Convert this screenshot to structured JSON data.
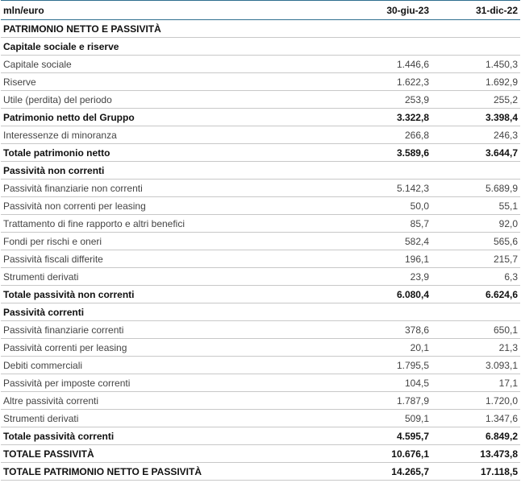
{
  "table": {
    "header": [
      "mln/euro",
      "30-giu-23",
      "31-dic-22"
    ],
    "rows": [
      [
        "PATRIMONIO NETTO E PASSIVITÀ"
      ],
      [
        "Capitale sociale e riserve"
      ],
      [
        "Capitale sociale",
        "1.446,6",
        "1.450,3"
      ],
      [
        "Riserve",
        "1.622,3",
        "1.692,9"
      ],
      [
        "Utile (perdita) del periodo",
        "253,9",
        "255,2"
      ],
      [
        "Patrimonio netto del Gruppo",
        "3.322,8",
        "3.398,4"
      ],
      [
        "Interessenze di minoranza",
        "266,8",
        "246,3"
      ],
      [
        "Totale patrimonio netto",
        "3.589,6",
        "3.644,7"
      ],
      [
        "Passività non correnti"
      ],
      [
        "Passività finanziarie non correnti",
        "5.142,3",
        "5.689,9"
      ],
      [
        "Passività non correnti per leasing",
        "50,0",
        "55,1"
      ],
      [
        "Trattamento di fine rapporto e altri benefici",
        "85,7",
        "92,0"
      ],
      [
        "Fondi per rischi e oneri",
        "582,4",
        "565,6"
      ],
      [
        "Passività fiscali differite",
        "196,1",
        "215,7"
      ],
      [
        "Strumenti derivati",
        "23,9",
        "6,3"
      ],
      [
        "Totale passività non correnti",
        "6.080,4",
        "6.624,6"
      ],
      [
        "Passività correnti"
      ],
      [
        "Passività finanziarie correnti",
        "378,6",
        "650,1"
      ],
      [
        "Passività correnti per leasing",
        "20,1",
        "21,3"
      ],
      [
        "Debiti commerciali",
        "1.795,5",
        "3.093,1"
      ],
      [
        "Passività per imposte correnti",
        "104,5",
        "17,1"
      ],
      [
        "Altre passività correnti",
        "1.787,9",
        "1.720,0"
      ],
      [
        "Strumenti derivati",
        "509,1",
        "1.347,6"
      ],
      [
        "Totale passività correnti",
        "4.595,7",
        "6.849,2"
      ],
      [
        "TOTALE PASSIVITÀ",
        "10.676,1",
        "13.473,8"
      ],
      [
        "TOTALE PATRIMONIO NETTO E PASSIVITÀ",
        "14.265,7",
        "17.118,5"
      ]
    ]
  }
}
